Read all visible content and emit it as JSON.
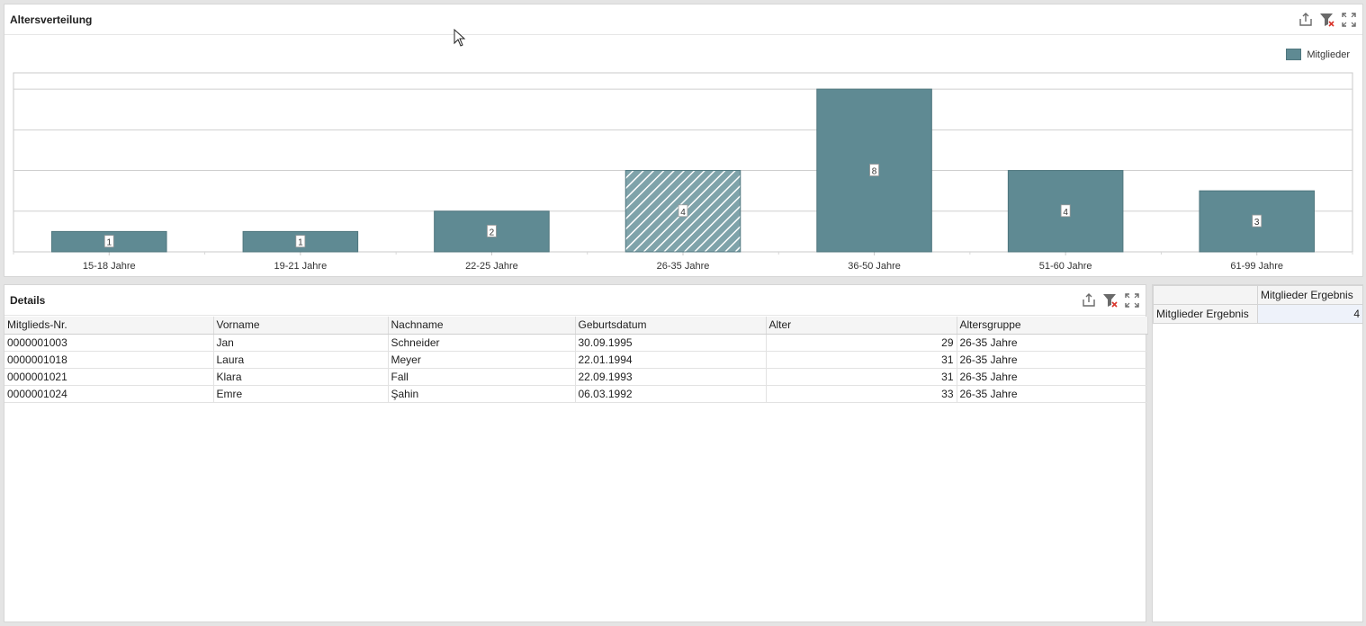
{
  "chart_panel": {
    "title": "Altersverteilung",
    "icons": [
      "export-icon",
      "clear-filter-icon",
      "maximize-icon"
    ]
  },
  "chart_data": {
    "type": "bar",
    "categories": [
      "15-18 Jahre",
      "19-21 Jahre",
      "22-25 Jahre",
      "26-35 Jahre",
      "36-50 Jahre",
      "51-60 Jahre",
      "61-99 Jahre"
    ],
    "series": [
      {
        "name": "Mitglieder",
        "values": [
          1,
          1,
          2,
          4,
          8,
          4,
          3
        ]
      }
    ],
    "ylim": [
      0,
      8.8
    ],
    "grid": true,
    "legend": "top-right",
    "selected_category": "26-35 Jahre",
    "bar_color": "#5f8a93",
    "bar_border": "#4f767e"
  },
  "details_panel": {
    "title": "Details",
    "columns": [
      "Mitglieds-Nr.",
      "Vorname",
      "Nachname",
      "Geburtsdatum",
      "Alter",
      "Altersgruppe"
    ],
    "rows": [
      [
        "0000001003",
        "Jan",
        "Schneider",
        "30.09.1995",
        "29",
        "26-35 Jahre"
      ],
      [
        "0000001018",
        "Laura",
        "Meyer",
        "22.01.1994",
        "31",
        "26-35 Jahre"
      ],
      [
        "0000001021",
        "Klara",
        "Fall",
        "22.09.1993",
        "31",
        "26-35 Jahre"
      ],
      [
        "0000001024",
        "Emre",
        "Şahin",
        "06.03.1992",
        "33",
        "26-35 Jahre"
      ]
    ]
  },
  "pivot_panel": {
    "column_header": "Mitglieder Ergebnis",
    "row_header": "Mitglieder Ergebnis",
    "value": "4"
  }
}
